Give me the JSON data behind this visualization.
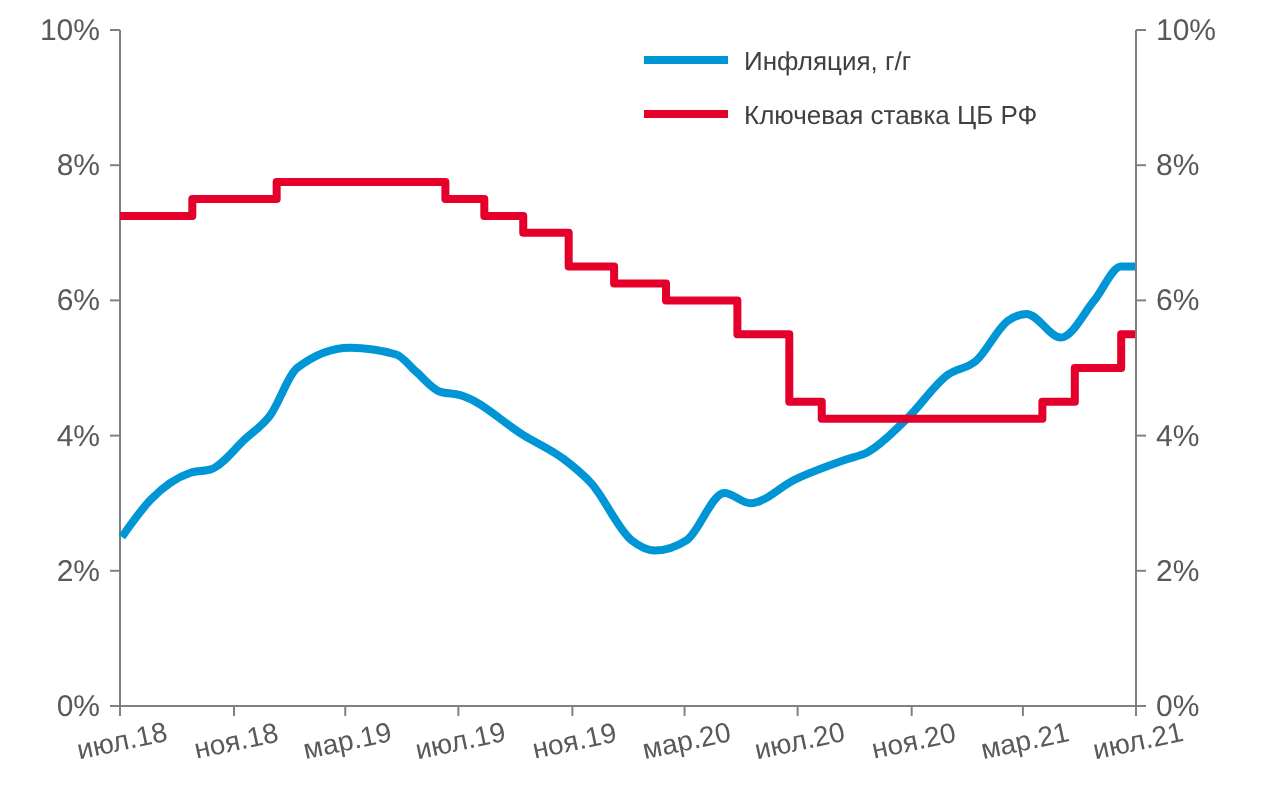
{
  "chart_data": {
    "type": "line",
    "xlim": [
      "2018-07-01",
      "2021-07-01"
    ],
    "xticks": [
      {
        "value": "2018-07-01",
        "label": "июл.18"
      },
      {
        "value": "2018-11-01",
        "label": "ноя.18"
      },
      {
        "value": "2019-03-01",
        "label": "мар.19"
      },
      {
        "value": "2019-07-01",
        "label": "июл.19"
      },
      {
        "value": "2019-11-01",
        "label": "ноя.19"
      },
      {
        "value": "2020-03-01",
        "label": "мар.20"
      },
      {
        "value": "2020-07-01",
        "label": "июл.20"
      },
      {
        "value": "2020-11-01",
        "label": "ноя.20"
      },
      {
        "value": "2021-03-01",
        "label": "мар.21"
      },
      {
        "value": "2021-07-01",
        "label": "июл.21"
      }
    ],
    "ylim": [
      0,
      10
    ],
    "yticks": [
      {
        "value": 0,
        "label": "0%"
      },
      {
        "value": 2,
        "label": "2%"
      },
      {
        "value": 4,
        "label": "4%"
      },
      {
        "value": 6,
        "label": "6%"
      },
      {
        "value": 8,
        "label": "8%"
      },
      {
        "value": 10,
        "label": "10%"
      }
    ],
    "y2lim": [
      0,
      10
    ],
    "y2ticks": [
      {
        "value": 0,
        "label": "0%"
      },
      {
        "value": 2,
        "label": "2%"
      },
      {
        "value": 4,
        "label": "4%"
      },
      {
        "value": 6,
        "label": "6%"
      },
      {
        "value": 8,
        "label": "8%"
      },
      {
        "value": 10,
        "label": "10%"
      }
    ],
    "grid": false,
    "legend": "top right",
    "marker": "none",
    "line_style": "solid",
    "series": [
      {
        "name": "Инфляция, г/г",
        "type": "line",
        "color": "#0096d6",
        "x": [
          "2018-07-03",
          "2018-08-03",
          "2018-09-15",
          "2018-10-07",
          "2018-11-13",
          "2018-12-10",
          "2019-01-08",
          "2019-03-06",
          "2019-04-25",
          "2019-05-16",
          "2019-06-11",
          "2019-07-03",
          "2019-09-10",
          "2019-10-23",
          "2019-11-21",
          "2020-01-04",
          "2020-01-29",
          "2020-03-03",
          "2020-04-13",
          "2020-05-11",
          "2020-06-28",
          "2020-08-23",
          "2020-09-14",
          "2020-10-27",
          "2020-12-10",
          "2021-01-09",
          "2021-02-13",
          "2021-03-05",
          "2021-04-11",
          "2021-05-17",
          "2021-06-15",
          "2021-06-30"
        ],
        "values": [
          2.5,
          3.05,
          3.45,
          3.5,
          3.95,
          4.3,
          5.0,
          5.3,
          5.2,
          4.95,
          4.65,
          4.6,
          4.0,
          3.65,
          3.3,
          2.45,
          2.3,
          2.45,
          3.15,
          3.0,
          3.35,
          3.65,
          3.75,
          4.25,
          4.9,
          5.1,
          5.7,
          5.8,
          5.45,
          6.0,
          6.5,
          6.5
        ]
      },
      {
        "name": "Ключевая ставка ЦБ РФ",
        "type": "step",
        "color": "#e4002b",
        "x": [
          "2018-07-01",
          "2018-09-17",
          "2018-12-17",
          "2019-06-17",
          "2019-07-29",
          "2019-09-09",
          "2019-10-28",
          "2019-12-16",
          "2020-02-10",
          "2020-04-27",
          "2020-06-22",
          "2020-07-27",
          "2021-03-22",
          "2021-04-26",
          "2021-06-15",
          "2021-06-30"
        ],
        "values": [
          7.25,
          7.5,
          7.75,
          7.5,
          7.25,
          7.0,
          6.5,
          6.25,
          6.0,
          5.5,
          4.5,
          4.25,
          4.5,
          5.0,
          5.5,
          5.5
        ]
      }
    ]
  }
}
